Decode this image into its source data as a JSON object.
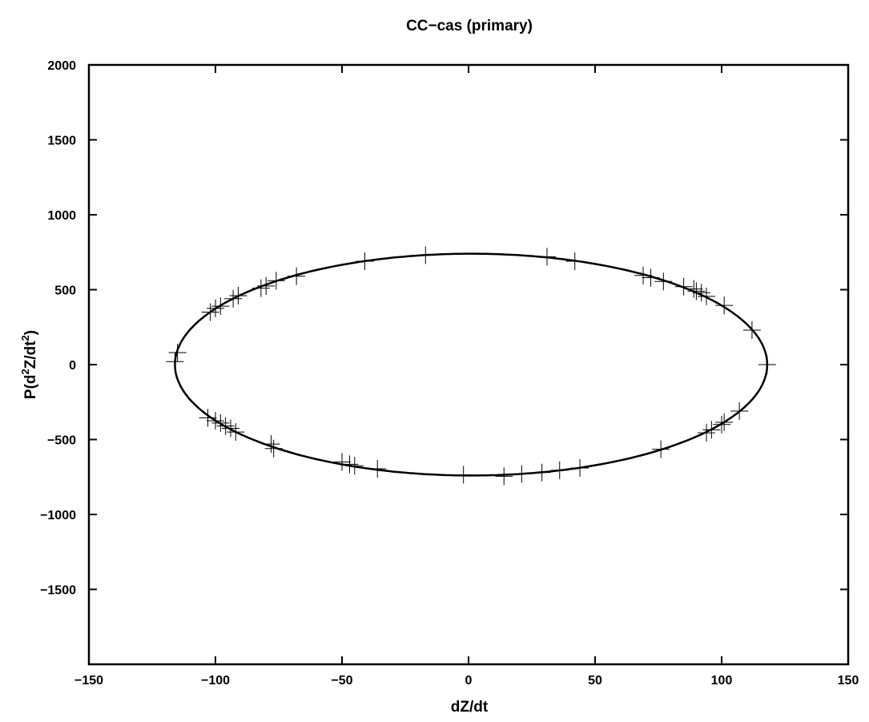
{
  "chart_data": {
    "type": "scatter",
    "title": "CC−cas (primary)",
    "xlabel": "dZ/dt",
    "ylabel": {
      "prefix": "P(d",
      "sup1": "2",
      "mid": "Z/dt",
      "sup2": "2",
      "suffix": ")"
    },
    "xlim": [
      -150,
      150
    ],
    "ylim": [
      -2000,
      2000
    ],
    "xticks": [
      {
        "value": -150,
        "label": "−150"
      },
      {
        "value": -100,
        "label": "−100"
      },
      {
        "value": -50,
        "label": "−50"
      },
      {
        "value": 0,
        "label": "0"
      },
      {
        "value": 50,
        "label": "50"
      },
      {
        "value": 100,
        "label": "100"
      },
      {
        "value": 150,
        "label": "150"
      }
    ],
    "yticks": [
      {
        "value": 2000,
        "label": "2000"
      },
      {
        "value": 1500,
        "label": "1500"
      },
      {
        "value": 1000,
        "label": "1000"
      },
      {
        "value": 500,
        "label": "500"
      },
      {
        "value": 0,
        "label": "0"
      },
      {
        "value": -500,
        "label": "−500"
      },
      {
        "value": -1000,
        "label": "−1000"
      },
      {
        "value": -1500,
        "label": "−1500"
      }
    ],
    "grid": false,
    "fit_ellipse": {
      "center_x": 1,
      "center_y": 0,
      "semi_axis_x": 117,
      "semi_axis_y": 740
    },
    "series": [
      {
        "marker": "plus",
        "x": [
          -116,
          -115,
          -102,
          -100,
          -98,
          -93,
          -91,
          -82,
          -80,
          -76,
          -68,
          -41,
          -17,
          31,
          42,
          69,
          72,
          77,
          85,
          89,
          90,
          92,
          94,
          101,
          112,
          118,
          -103,
          -100,
          -98,
          -96,
          -94,
          -92,
          -78,
          -77,
          -50,
          -47,
          -45,
          -36,
          -2,
          14,
          21,
          29,
          36,
          44,
          76,
          94,
          96,
          100,
          101,
          107
        ],
        "y": [
          20,
          80,
          350,
          375,
          390,
          440,
          460,
          510,
          525,
          560,
          590,
          690,
          730,
          720,
          690,
          595,
          580,
          555,
          520,
          505,
          490,
          480,
          455,
          395,
          230,
          0,
          -355,
          -375,
          -390,
          -410,
          -425,
          -450,
          -530,
          -560,
          -650,
          -665,
          -675,
          -695,
          -735,
          -745,
          -730,
          -720,
          -705,
          -690,
          -565,
          -455,
          -435,
          -400,
          -385,
          -310
        ]
      }
    ]
  }
}
